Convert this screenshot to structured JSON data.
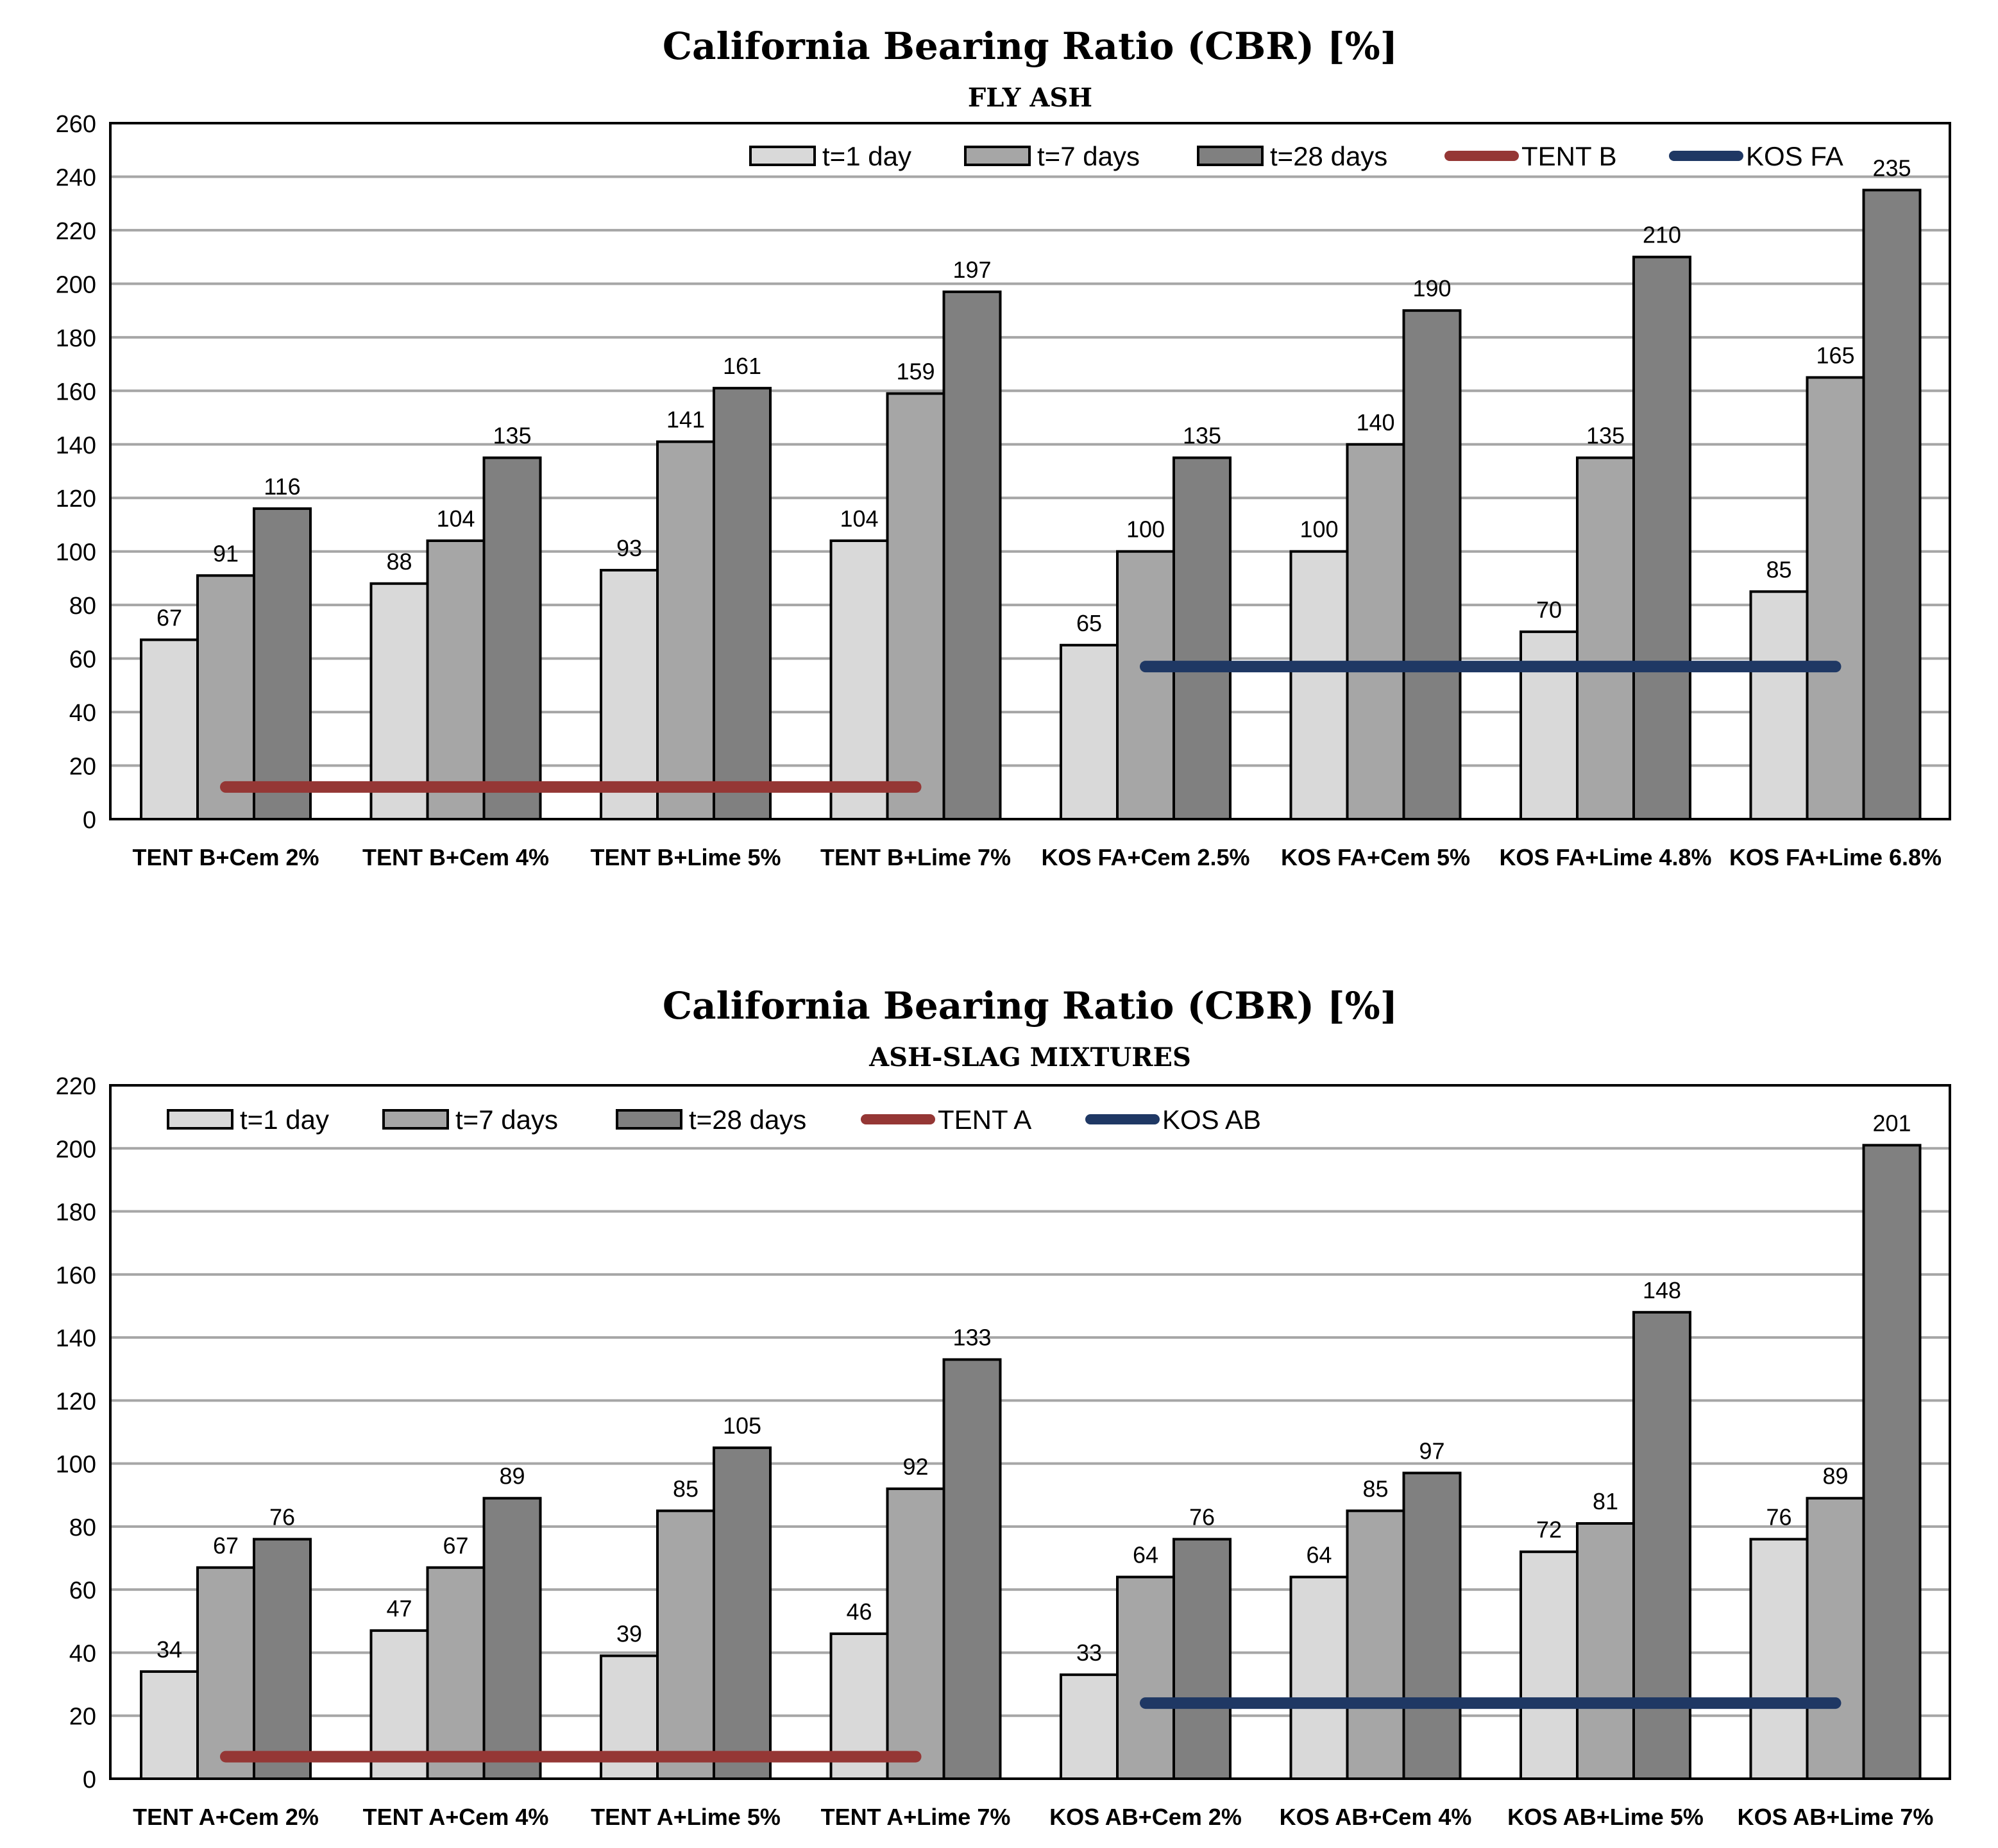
{
  "chart_data": [
    {
      "type": "bar",
      "title": "California Bearing Ratio (CBR)  [%]",
      "subtitle": "FLY ASH",
      "xlabel": "",
      "ylabel": "",
      "ylim": [
        0,
        260
      ],
      "yticks": [
        0,
        20,
        40,
        60,
        80,
        100,
        120,
        140,
        160,
        180,
        200,
        220,
        240,
        260
      ],
      "grid": true,
      "legend_position": "top-right",
      "categories": [
        "TENT B+Cem 2%",
        "TENT B+Cem 4%",
        "TENT B+Lime 5%",
        "TENT B+Lime 7%",
        "KOS FA+Cem 2.5%",
        "KOS FA+Cem 5%",
        "KOS FA+Lime 4.8%",
        "KOS FA+Lime 6.8%"
      ],
      "series": [
        {
          "name": "t=1 day",
          "color": "#d9d9d9",
          "values": [
            67,
            88,
            93,
            104,
            65,
            100,
            70,
            85
          ]
        },
        {
          "name": "t=7 days",
          "color": "#a6a6a6",
          "values": [
            91,
            104,
            141,
            159,
            100,
            140,
            135,
            165
          ]
        },
        {
          "name": "t=28 days",
          "color": "#808080",
          "values": [
            116,
            135,
            161,
            197,
            135,
            190,
            210,
            235
          ]
        }
      ],
      "reference_lines": [
        {
          "name": "TENT B",
          "color": "#953735",
          "value": 12,
          "from_category": 0,
          "to_category": 3
        },
        {
          "name": "KOS FA",
          "color": "#1f3864",
          "value": 57,
          "from_category": 4,
          "to_category": 7
        }
      ]
    },
    {
      "type": "bar",
      "title": "California Bearing Ratio (CBR) [%]",
      "subtitle": "ASH-SLAG  MIXTURES",
      "xlabel": "",
      "ylabel": "",
      "ylim": [
        0,
        220
      ],
      "yticks": [
        0,
        20,
        40,
        60,
        80,
        100,
        120,
        140,
        160,
        180,
        200,
        220
      ],
      "grid": true,
      "legend_position": "top-left",
      "categories": [
        "TENT A+Cem 2%",
        "TENT A+Cem 4%",
        "TENT A+Lime 5%",
        "TENT A+Lime 7%",
        "KOS AB+Cem 2%",
        "KOS AB+Cem 4%",
        "KOS AB+Lime 5%",
        "KOS AB+Lime 7%"
      ],
      "series": [
        {
          "name": "t=1 day",
          "color": "#d9d9d9",
          "values": [
            34,
            47,
            39,
            46,
            33,
            64,
            72,
            76
          ]
        },
        {
          "name": "t=7 days",
          "color": "#a6a6a6",
          "values": [
            67,
            67,
            85,
            92,
            64,
            85,
            81,
            89
          ]
        },
        {
          "name": "t=28 days",
          "color": "#808080",
          "values": [
            76,
            89,
            105,
            133,
            76,
            97,
            148,
            201
          ]
        }
      ],
      "reference_lines": [
        {
          "name": "TENT A",
          "color": "#953735",
          "value": 7,
          "from_category": 0,
          "to_category": 3
        },
        {
          "name": "KOS AB",
          "color": "#1f3864",
          "value": 24,
          "from_category": 4,
          "to_category": 7
        }
      ]
    }
  ]
}
